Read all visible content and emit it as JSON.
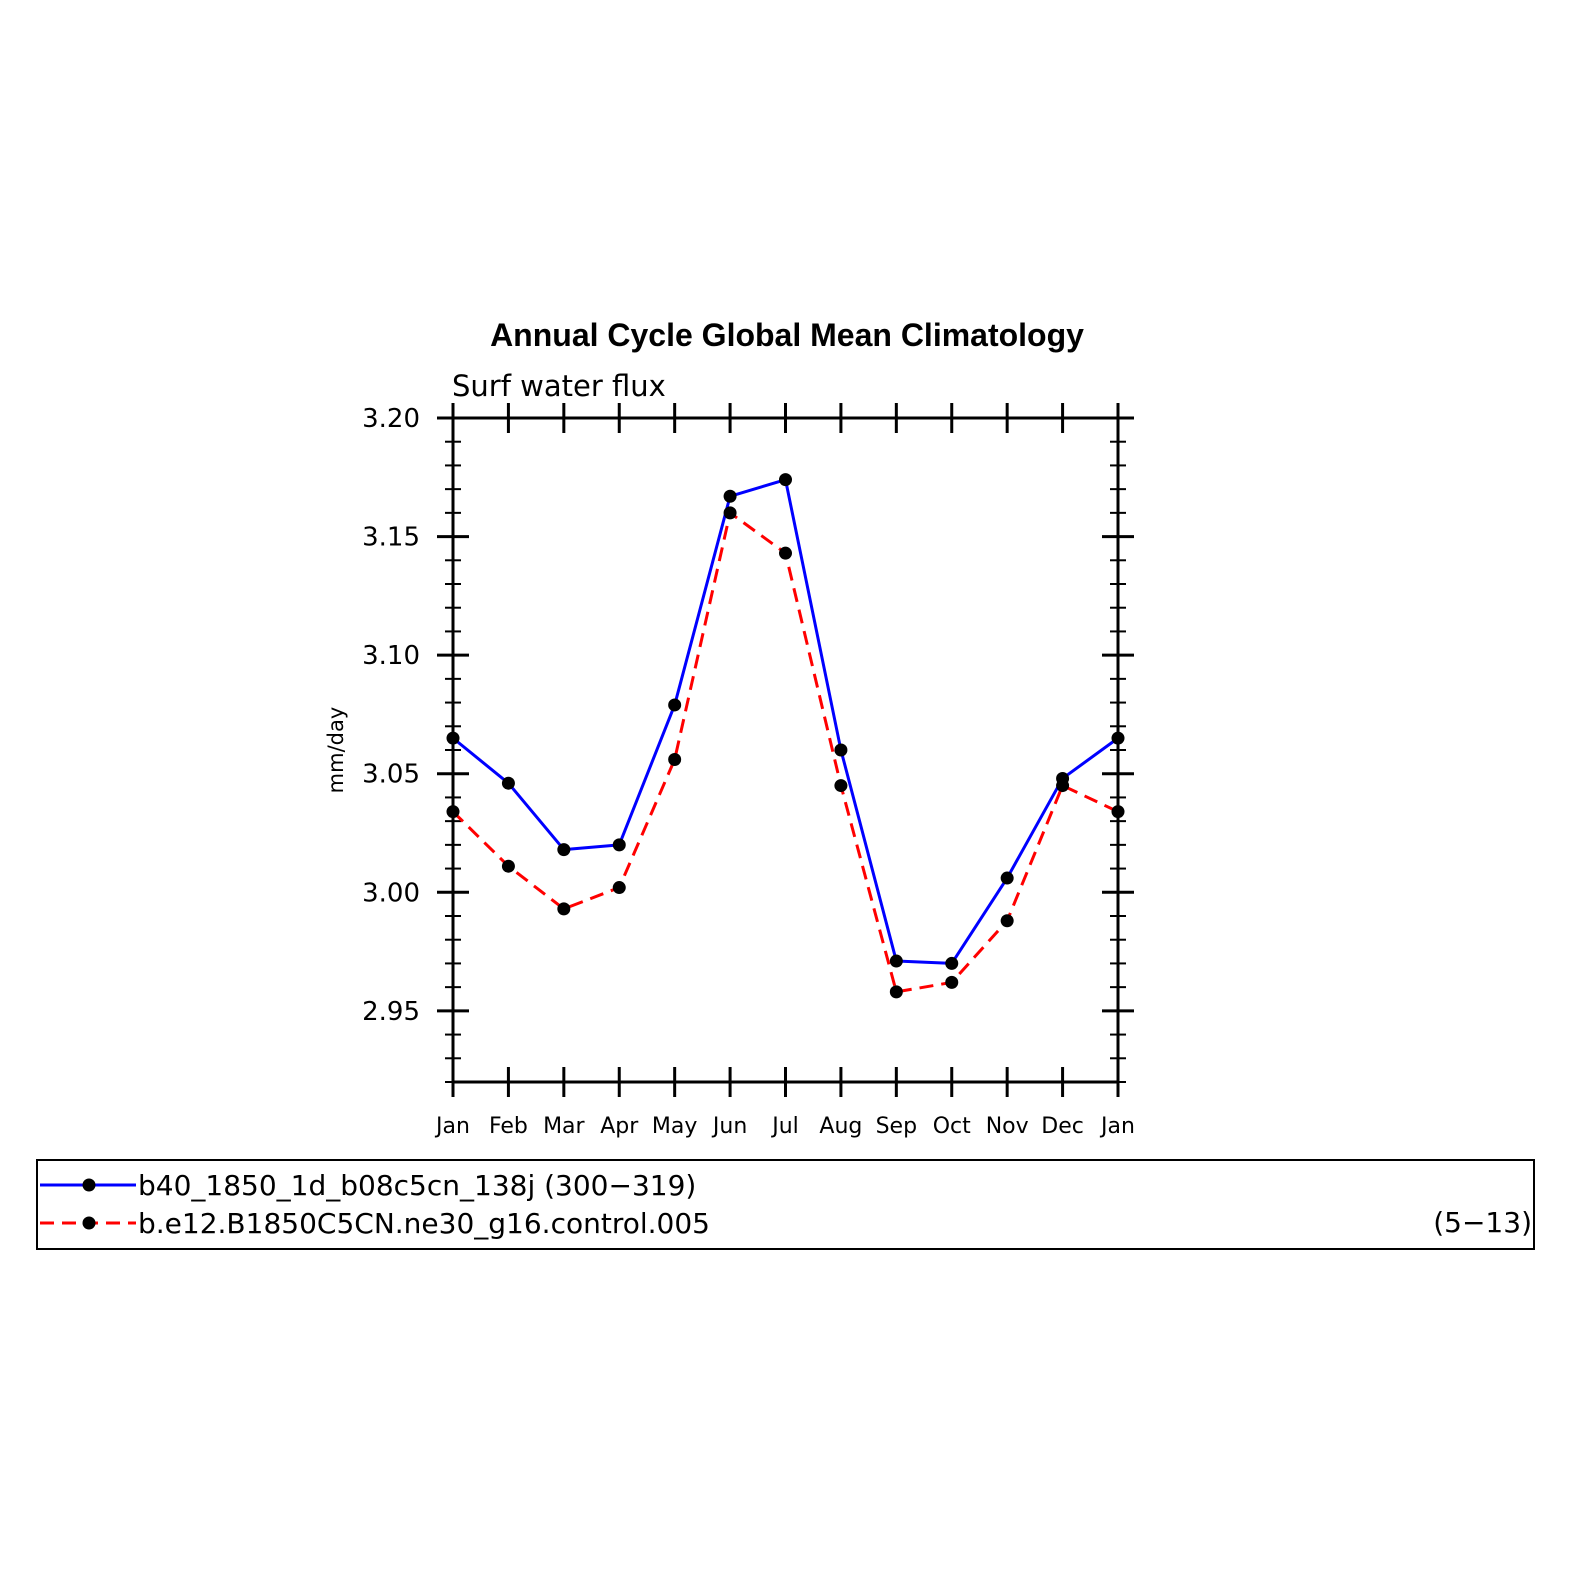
{
  "chart_data": {
    "type": "line",
    "title": "Annual Cycle Global Mean Climatology",
    "subtitle": "Surf water flux",
    "xlabel": "",
    "ylabel": "mm/day",
    "ylim": [
      2.92,
      3.2
    ],
    "yticks": [
      "3.20",
      "3.15",
      "3.10",
      "3.05",
      "3.00",
      "2.95"
    ],
    "ytick_values": [
      3.2,
      3.15,
      3.1,
      3.05,
      3.0,
      2.95
    ],
    "categories": [
      "Jan",
      "Feb",
      "Mar",
      "Apr",
      "May",
      "Jun",
      "Jul",
      "Aug",
      "Sep",
      "Oct",
      "Nov",
      "Dec",
      "Jan"
    ],
    "grid": false,
    "legend_placement": "bottom",
    "series": [
      {
        "name": "b40_1850_1d_b08c5cn_138j (300−319)",
        "color": "#0000ff",
        "dashed": false,
        "marker": "filled-circle",
        "values": [
          3.065,
          3.046,
          3.018,
          3.02,
          3.079,
          3.167,
          3.174,
          3.06,
          2.971,
          2.97,
          3.006,
          3.048,
          3.065
        ]
      },
      {
        "name": "b.e12.B1850C5CN.ne30_g16.control.005",
        "color": "#ff0000",
        "dashed": true,
        "marker": "filled-circle",
        "values": [
          3.034,
          3.011,
          2.993,
          3.002,
          3.056,
          3.16,
          3.143,
          3.045,
          2.958,
          2.962,
          2.988,
          3.045,
          3.034
        ]
      }
    ],
    "legend_suffix": "(5−13)"
  }
}
